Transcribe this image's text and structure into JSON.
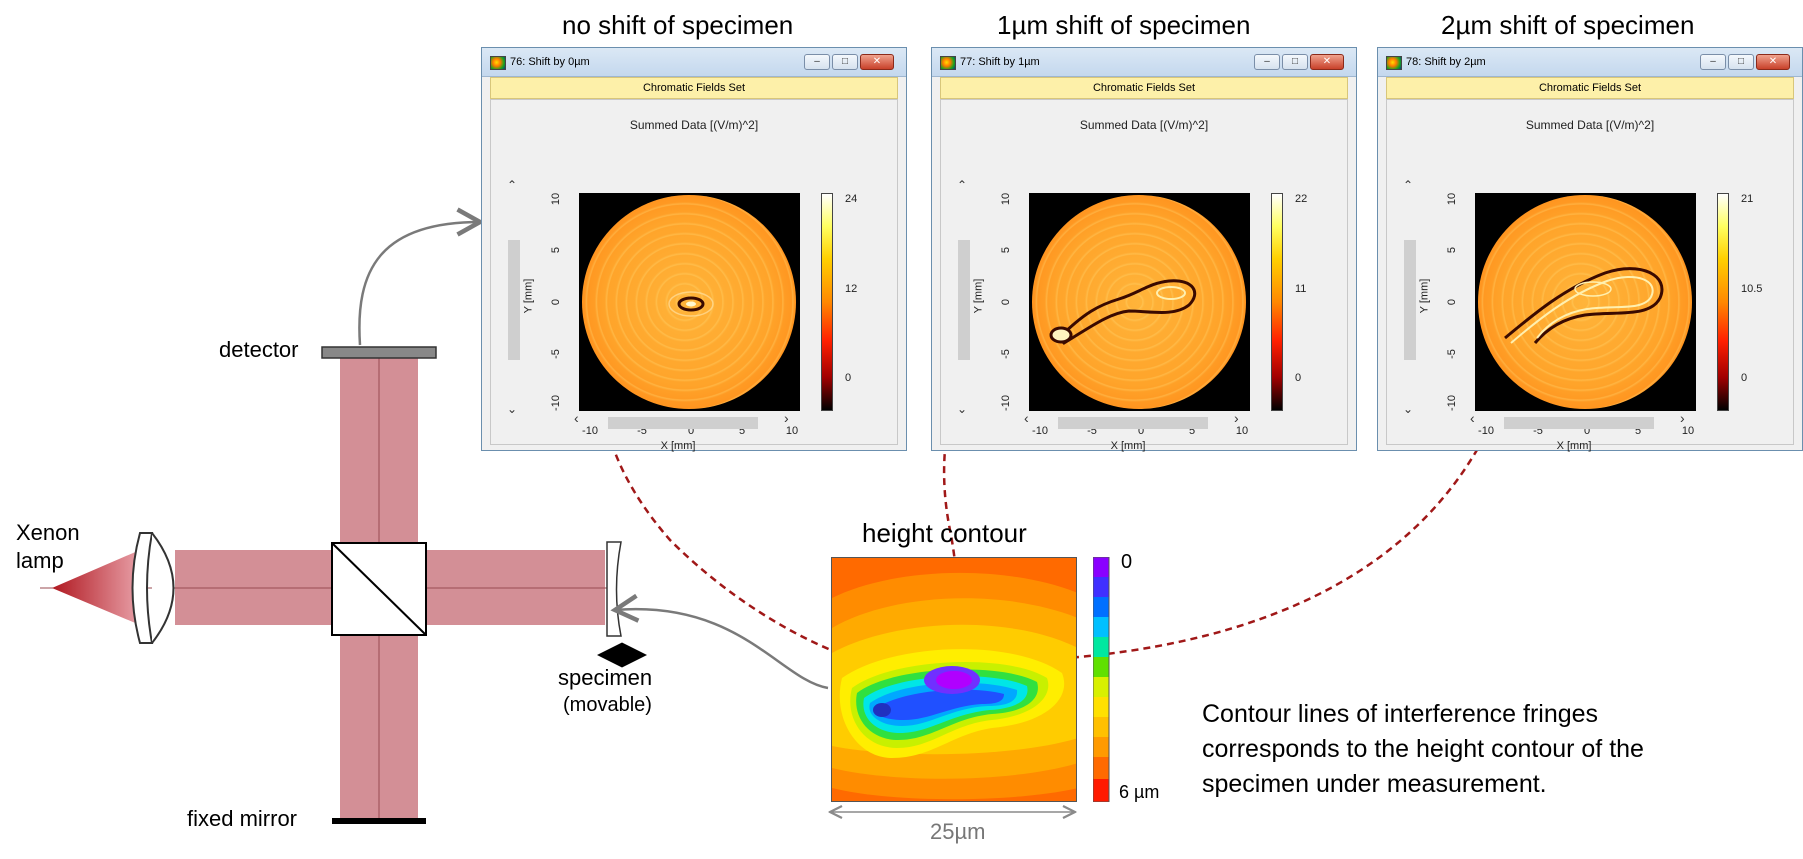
{
  "headings": {
    "no_shift": "no shift of specimen",
    "shift_1": "1µm shift of specimen",
    "shift_2": "2µm shift of specimen",
    "height_contour": "height contour"
  },
  "windows": [
    {
      "title": "76: Shift by 0µm",
      "subbar": "Chromatic Fields Set",
      "plot_title": "Summed Data  [(V/m)^2]",
      "colorbar": {
        "max": "24",
        "mid": "12",
        "min": "0"
      },
      "xticks": [
        "-10",
        "-5",
        "0",
        "5",
        "10"
      ],
      "yticks": [
        "10",
        "5",
        "0",
        "-5",
        "-10"
      ],
      "xlabel": "X [mm]",
      "ylabel": "Y [mm]"
    },
    {
      "title": "77: Shift by 1µm",
      "subbar": "Chromatic Fields Set",
      "plot_title": "Summed Data  [(V/m)^2]",
      "colorbar": {
        "max": "22",
        "mid": "11",
        "min": "0"
      },
      "xticks": [
        "-10",
        "-5",
        "0",
        "5",
        "10"
      ],
      "yticks": [
        "10",
        "5",
        "0",
        "-5",
        "-10"
      ],
      "xlabel": "X [mm]",
      "ylabel": "Y [mm]"
    },
    {
      "title": "78: Shift by 2µm",
      "subbar": "Chromatic Fields Set",
      "plot_title": "Summed Data  [(V/m)^2]",
      "colorbar": {
        "max": "21",
        "mid": "10.5",
        "min": "0"
      },
      "xticks": [
        "-10",
        "-5",
        "0",
        "5",
        "10"
      ],
      "yticks": [
        "10",
        "5",
        "0",
        "-5",
        "-10"
      ],
      "xlabel": "X [mm]",
      "ylabel": "Y [mm]"
    }
  ],
  "labels": {
    "detector": "detector",
    "xenon_lamp_line1": "Xenon",
    "xenon_lamp_line2": "lamp",
    "specimen": "specimen",
    "movable": "(movable)",
    "fixed_mirror": "fixed mirror",
    "contour_top": "0",
    "contour_bottom": "6 µm",
    "scale": "25µm"
  },
  "caption": [
    "Contour lines of interference fringes",
    "corresponds to the height contour of the",
    "specimen under measurement."
  ],
  "colors": {
    "beam": "#c0606a",
    "arrow_dashed": "#a01818",
    "arrow_gray": "#7a7a7a",
    "window_border": "#6b8fae",
    "subbar": "#fdf0a9"
  }
}
